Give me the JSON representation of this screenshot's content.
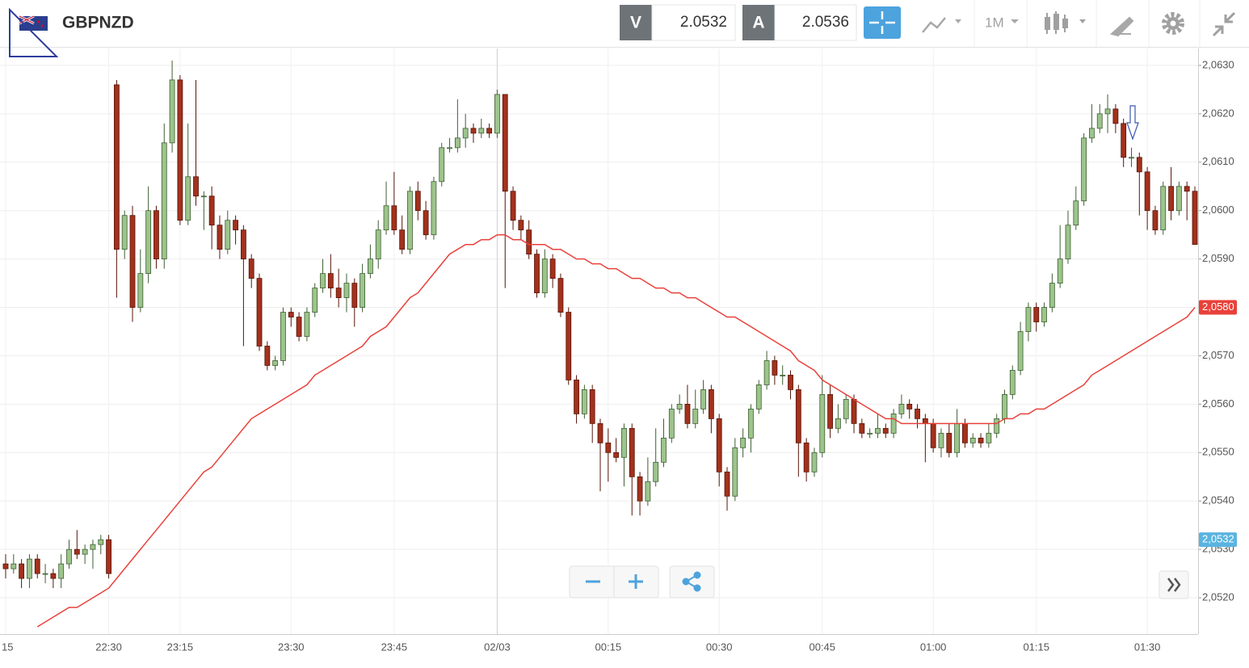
{
  "toolbar": {
    "symbol": "GBPNZD",
    "bid_letter": "V",
    "bid": "2.0532",
    "ask_letter": "A",
    "ask": "2.0536",
    "timeframe": "1M"
  },
  "chart_data": {
    "type": "candlestick",
    "up_color": "#9cc48b",
    "down_color": "#a3311c",
    "ylim": [
      2.05125,
      2.06335
    ],
    "yticks": [
      {
        "value": 2.052,
        "label": "2,0520"
      },
      {
        "value": 2.053,
        "label": "2,0530"
      },
      {
        "value": 2.054,
        "label": "2,0540"
      },
      {
        "value": 2.055,
        "label": "2,0550"
      },
      {
        "value": 2.056,
        "label": "2,0560"
      },
      {
        "value": 2.057,
        "label": "2,0570"
      },
      {
        "value": 2.058,
        "label": "2,0580"
      },
      {
        "value": 2.059,
        "label": "2,0590"
      },
      {
        "value": 2.06,
        "label": "2,0600"
      },
      {
        "value": 2.061,
        "label": "2,0610"
      },
      {
        "value": 2.062,
        "label": "2,0620"
      },
      {
        "value": 2.063,
        "label": "2,0630"
      }
    ],
    "grid": true,
    "categories": [
      "15",
      null,
      null,
      null,
      null,
      null,
      null,
      null,
      null,
      null,
      null,
      null,
      null,
      "22:30",
      null,
      null,
      null,
      null,
      null,
      null,
      null,
      null,
      "23:15",
      null,
      null,
      null,
      null,
      null,
      null,
      null,
      null,
      null,
      null,
      null,
      null,
      null,
      "23:30",
      null,
      null,
      null,
      null,
      null,
      null,
      null,
      null,
      null,
      null,
      null,
      null,
      "23:45",
      null,
      null,
      null,
      null,
      null,
      null,
      null,
      null,
      null,
      null,
      null,
      null,
      "02/03",
      null,
      null,
      null,
      null,
      null,
      null,
      null,
      null,
      null,
      null,
      null,
      null,
      null,
      "00:15",
      null,
      null,
      null,
      null,
      null,
      null,
      null,
      null,
      null,
      null,
      null,
      null,
      null,
      "00:30",
      null,
      null,
      null,
      null,
      null,
      null,
      null,
      null,
      null,
      null,
      null,
      null,
      "00:45",
      null,
      null,
      null,
      null,
      null,
      null,
      null,
      null,
      null,
      null,
      null,
      null,
      null,
      "01:00",
      null,
      null,
      null,
      null,
      null,
      null,
      null,
      null,
      null,
      null,
      null,
      null,
      "01:15",
      null,
      null,
      null,
      null,
      null,
      null,
      null,
      null,
      null,
      null,
      null,
      null,
      null,
      "01:30",
      null,
      null,
      null,
      null,
      null,
      null
    ],
    "day_separator": "02/03",
    "open": [
      2.0527,
      2.0526,
      2.0527,
      2.0524,
      2.0528,
      2.0525,
      2.0525,
      2.0524,
      2.0527,
      2.053,
      2.0529,
      2.053,
      2.0531,
      2.0532,
      2.0626,
      2.0592,
      2.0599,
      2.058,
      2.0587,
      2.06,
      2.059,
      2.0614,
      2.0627,
      2.0598,
      2.0607,
      2.0603,
      2.0603,
      2.0597,
      2.0592,
      2.0598,
      2.0596,
      2.059,
      2.0586,
      2.0572,
      2.0568,
      2.0569,
      2.0579,
      2.0578,
      2.0574,
      2.0579,
      2.0584,
      2.0587,
      2.0584,
      2.0582,
      2.0585,
      2.058,
      2.0587,
      2.059,
      2.0596,
      2.0601,
      2.0596,
      2.0592,
      2.0604,
      2.06,
      2.0595,
      2.0606,
      2.0613,
      2.0613,
      2.0615,
      2.0617,
      2.0616,
      2.0617,
      2.0616,
      2.0624,
      2.0604,
      2.0598,
      2.0596,
      2.0591,
      2.0583,
      2.059,
      2.0586,
      2.0579,
      2.0565,
      2.0558,
      2.0563,
      2.0556,
      2.0552,
      2.055,
      2.0549,
      2.0555,
      2.0545,
      2.054,
      2.0544,
      2.0548,
      2.0553,
      2.0559,
      2.056,
      2.0556,
      2.0559,
      2.0563,
      2.0557,
      2.0546,
      2.0541,
      2.0551,
      2.0553,
      2.0559,
      2.0564,
      2.0569,
      2.0566,
      2.0566,
      2.0563,
      2.0552,
      2.0546,
      2.055,
      2.0562,
      2.0555,
      2.0557,
      2.0561,
      2.0556,
      2.0554,
      2.0554,
      2.0555,
      2.0554,
      2.0558,
      2.056,
      2.0559,
      2.0557,
      2.0556,
      2.0551,
      2.0554,
      2.055,
      2.0556,
      2.0552,
      2.0553,
      2.0552,
      2.0554,
      2.0557,
      2.0562,
      2.0567,
      2.0575,
      2.058,
      2.0577,
      2.058,
      2.0585,
      2.059,
      2.0597,
      2.0602,
      2.0615,
      2.0617,
      2.062,
      2.0621,
      2.0618,
      2.0611,
      2.0611,
      2.0608,
      2.06,
      2.0596,
      2.0605,
      2.06,
      2.0605,
      2.0604
    ],
    "high": [
      2.0529,
      2.0529,
      2.0528,
      2.0529,
      2.0529,
      2.0527,
      2.0526,
      2.0529,
      2.0532,
      2.0534,
      2.0531,
      2.0532,
      2.0533,
      2.0533,
      2.0627,
      2.06,
      2.0601,
      2.0592,
      2.0605,
      2.0601,
      2.0618,
      2.0631,
      2.0628,
      2.0618,
      2.0627,
      2.0604,
      2.0605,
      2.0599,
      2.06,
      2.0599,
      2.0597,
      2.0591,
      2.0587,
      2.0573,
      2.057,
      2.058,
      2.058,
      2.0579,
      2.058,
      2.0585,
      2.059,
      2.0591,
      2.0588,
      2.0587,
      2.0586,
      2.0589,
      2.0593,
      2.0598,
      2.0606,
      2.0608,
      2.0599,
      2.0605,
      2.0606,
      2.0602,
      2.0607,
      2.0614,
      2.0615,
      2.0623,
      2.062,
      2.0618,
      2.0619,
      2.0618,
      2.0625,
      2.0624,
      2.0605,
      2.0599,
      2.0598,
      2.0592,
      2.0592,
      2.0591,
      2.0587,
      2.058,
      2.0566,
      2.0564,
      2.0564,
      2.0557,
      2.0555,
      2.0553,
      2.0556,
      2.0556,
      2.0546,
      2.0549,
      2.0555,
      2.0557,
      2.056,
      2.0562,
      2.0564,
      2.0563,
      2.0565,
      2.0564,
      2.0558,
      2.0547,
      2.0553,
      2.0555,
      2.056,
      2.0565,
      2.0571,
      2.057,
      2.0568,
      2.0567,
      2.0564,
      2.0553,
      2.0551,
      2.0566,
      2.0564,
      2.056,
      2.0562,
      2.0562,
      2.0557,
      2.0555,
      2.0558,
      2.0556,
      2.0559,
      2.0562,
      2.0561,
      2.056,
      2.0558,
      2.0557,
      2.0555,
      2.0556,
      2.0559,
      2.0557,
      2.0554,
      2.0554,
      2.0556,
      2.0558,
      2.0563,
      2.0568,
      2.0577,
      2.0581,
      2.0581,
      2.0581,
      2.0587,
      2.0597,
      2.06,
      2.0605,
      2.0616,
      2.0622,
      2.0622,
      2.0624,
      2.0622,
      2.0619,
      2.0613,
      2.0612,
      2.0609,
      2.0601,
      2.0606,
      2.0609,
      2.0606,
      2.0606,
      2.0605
    ],
    "low": [
      2.0524,
      2.0525,
      2.0522,
      2.0522,
      2.0524,
      2.0523,
      2.0522,
      2.0522,
      2.0526,
      2.0528,
      2.0527,
      2.0526,
      2.0529,
      2.0524,
      2.0582,
      2.059,
      2.0577,
      2.0579,
      2.0585,
      2.0588,
      2.0588,
      2.0612,
      2.0597,
      2.0597,
      2.0601,
      2.0596,
      2.0592,
      2.059,
      2.0591,
      2.0593,
      2.0572,
      2.0584,
      2.0571,
      2.0567,
      2.0567,
      2.0568,
      2.0576,
      2.0573,
      2.0573,
      2.0578,
      2.0583,
      2.0582,
      2.058,
      2.0579,
      2.0576,
      2.0579,
      2.0586,
      2.0588,
      2.0595,
      2.0595,
      2.0591,
      2.0591,
      2.0598,
      2.0594,
      2.0594,
      2.0605,
      2.0612,
      2.0612,
      2.0613,
      2.0614,
      2.0615,
      2.0615,
      2.0615,
      2.0584,
      2.0596,
      2.0594,
      2.059,
      2.0582,
      2.0582,
      2.0584,
      2.0578,
      2.0564,
      2.0556,
      2.0557,
      2.0552,
      2.0542,
      2.0544,
      2.0548,
      2.0543,
      2.0537,
      2.0537,
      2.0539,
      2.0543,
      2.0547,
      2.0552,
      2.0558,
      2.0555,
      2.0555,
      2.0558,
      2.0554,
      2.0543,
      2.0538,
      2.054,
      2.0549,
      2.055,
      2.0558,
      2.0563,
      2.0564,
      2.0564,
      2.0561,
      2.0545,
      2.0544,
      2.0545,
      2.0549,
      2.0553,
      2.0554,
      2.0556,
      2.0554,
      2.0553,
      2.0553,
      2.0553,
      2.0553,
      2.0553,
      2.0557,
      2.0557,
      2.0555,
      2.0548,
      2.055,
      2.0549,
      2.0549,
      2.0549,
      2.0551,
      2.0551,
      2.0551,
      2.0551,
      2.0553,
      2.0556,
      2.0561,
      2.0566,
      2.0573,
      2.0575,
      2.0576,
      2.0579,
      2.0584,
      2.0589,
      2.0596,
      2.0601,
      2.0614,
      2.0616,
      2.0616,
      2.0616,
      2.0609,
      2.0609,
      2.0599,
      2.0596,
      2.0595,
      2.0595,
      2.0598,
      2.0599,
      2.0598,
      2.0593
    ],
    "close": [
      2.0526,
      2.0527,
      2.0524,
      2.0528,
      2.0525,
      2.0525,
      2.0524,
      2.0527,
      2.053,
      2.0529,
      2.053,
      2.0531,
      2.0532,
      2.0525,
      2.0592,
      2.0599,
      2.058,
      2.0587,
      2.06,
      2.059,
      2.0614,
      2.0627,
      2.0598,
      2.0607,
      2.0603,
      2.0603,
      2.0597,
      2.0592,
      2.0598,
      2.0596,
      2.059,
      2.0586,
      2.0572,
      2.0568,
      2.0569,
      2.0579,
      2.0578,
      2.0574,
      2.0579,
      2.0584,
      2.0587,
      2.0584,
      2.0582,
      2.0585,
      2.058,
      2.0587,
      2.059,
      2.0596,
      2.0601,
      2.0596,
      2.0592,
      2.0604,
      2.06,
      2.0595,
      2.0606,
      2.0613,
      2.0613,
      2.0615,
      2.0617,
      2.0616,
      2.0617,
      2.0616,
      2.0624,
      2.0604,
      2.0598,
      2.0596,
      2.0591,
      2.0583,
      2.059,
      2.0586,
      2.0579,
      2.0565,
      2.0558,
      2.0563,
      2.0556,
      2.0552,
      2.055,
      2.0549,
      2.0555,
      2.0545,
      2.054,
      2.0544,
      2.0548,
      2.0553,
      2.0559,
      2.056,
      2.0556,
      2.0559,
      2.0563,
      2.0557,
      2.0546,
      2.0541,
      2.0551,
      2.0553,
      2.0559,
      2.0564,
      2.0569,
      2.0566,
      2.0566,
      2.0563,
      2.0552,
      2.0546,
      2.055,
      2.0562,
      2.0555,
      2.0557,
      2.0561,
      2.0556,
      2.0554,
      2.0554,
      2.0555,
      2.0554,
      2.0558,
      2.056,
      2.0559,
      2.0557,
      2.0556,
      2.0551,
      2.0554,
      2.055,
      2.0556,
      2.0552,
      2.0553,
      2.0552,
      2.0554,
      2.0557,
      2.0562,
      2.0567,
      2.0575,
      2.058,
      2.0577,
      2.058,
      2.0585,
      2.059,
      2.0597,
      2.0602,
      2.0615,
      2.0617,
      2.062,
      2.0621,
      2.0618,
      2.0611,
      2.0611,
      2.0608,
      2.06,
      2.0596,
      2.0605,
      2.06,
      2.0605,
      2.0604,
      2.0593
    ],
    "moving_average": {
      "color": "#e8413a",
      "last_label": "2,0580",
      "values": [
        null,
        null,
        null,
        null,
        2.0514,
        2.0515,
        2.0516,
        2.0517,
        2.0518,
        2.0518,
        2.0519,
        2.052,
        2.0521,
        2.0522,
        2.0524,
        2.0526,
        2.0528,
        2.053,
        2.0532,
        2.0534,
        2.0536,
        2.0538,
        2.054,
        2.0542,
        2.0544,
        2.0546,
        2.0547,
        2.0549,
        2.0551,
        2.0553,
        2.0555,
        2.0557,
        2.0558,
        2.0559,
        2.056,
        2.0561,
        2.0562,
        2.0563,
        2.0564,
        2.0566,
        2.0567,
        2.0568,
        2.0569,
        2.057,
        2.0571,
        2.0572,
        2.0574,
        2.0575,
        2.0576,
        2.0578,
        2.058,
        2.0582,
        2.0583,
        2.0585,
        2.0587,
        2.0589,
        2.0591,
        2.0592,
        2.0593,
        2.0593,
        2.0594,
        2.0594,
        2.0595,
        2.0595,
        2.0594,
        2.0594,
        2.0593,
        2.0593,
        2.0593,
        2.0592,
        2.0592,
        2.0591,
        2.059,
        2.059,
        2.0589,
        2.0589,
        2.0588,
        2.0588,
        2.0587,
        2.0586,
        2.0586,
        2.0585,
        2.0584,
        2.0584,
        2.0583,
        2.0583,
        2.0582,
        2.0582,
        2.0581,
        2.058,
        2.0579,
        2.0578,
        2.0578,
        2.0577,
        2.0576,
        2.0575,
        2.0574,
        2.0573,
        2.0572,
        2.0571,
        2.0569,
        2.0568,
        2.0567,
        2.0565,
        2.0564,
        2.0563,
        2.0562,
        2.0561,
        2.056,
        2.0559,
        2.0558,
        2.0557,
        2.0557,
        2.0556,
        2.0556,
        2.0556,
        2.0556,
        2.0556,
        2.0556,
        2.0556,
        2.0556,
        2.0556,
        2.0556,
        2.0556,
        2.0556,
        2.0556,
        2.0557,
        2.0557,
        2.0558,
        2.0558,
        2.0559,
        2.0559,
        2.056,
        2.0561,
        2.0562,
        2.0563,
        2.0564,
        2.0566,
        2.0567,
        2.0568,
        2.0569,
        2.057,
        2.0571,
        2.0572,
        2.0573,
        2.0574,
        2.0575,
        2.0576,
        2.0577,
        2.0578,
        2.058
      ]
    },
    "current_price": {
      "value": 2.0532,
      "label": "2,0532",
      "color": "#5ab4e0"
    }
  }
}
